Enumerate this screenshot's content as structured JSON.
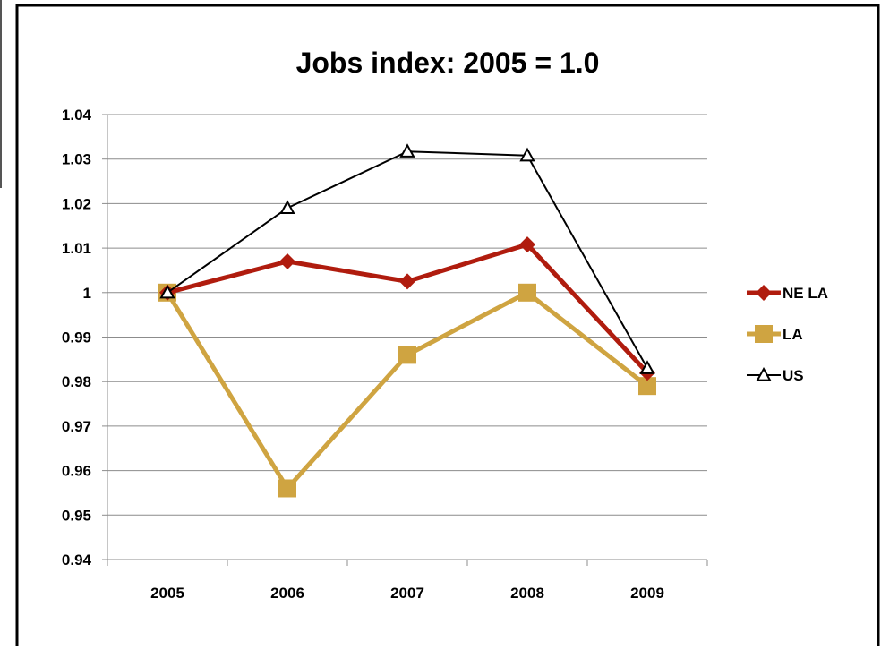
{
  "chart_data": {
    "type": "line",
    "title": "Jobs index: 2005 = 1.0",
    "xlabel": "",
    "ylabel": "",
    "categories": [
      "2005",
      "2006",
      "2007",
      "2008",
      "2009"
    ],
    "ylim": [
      0.94,
      1.04
    ],
    "y_ticks": [
      "0.94",
      "0.95",
      "0.96",
      "0.97",
      "0.98",
      "0.99",
      "1",
      "1.01",
      "1.02",
      "1.03",
      "1.04"
    ],
    "grid": true,
    "legend_position": "right",
    "series": [
      {
        "name": "NE LA",
        "color": "#b01c0e",
        "marker": "diamond",
        "values": [
          1.0,
          1.007,
          1.0025,
          1.0108,
          0.982
        ]
      },
      {
        "name": "LA",
        "color": "#cfa441",
        "marker": "square",
        "values": [
          1.0,
          0.956,
          0.986,
          1.0,
          0.979
        ]
      },
      {
        "name": "US",
        "color": "#000000",
        "marker": "triangle",
        "values": [
          1.0,
          1.019,
          1.0317,
          1.0308,
          0.983
        ]
      }
    ]
  }
}
